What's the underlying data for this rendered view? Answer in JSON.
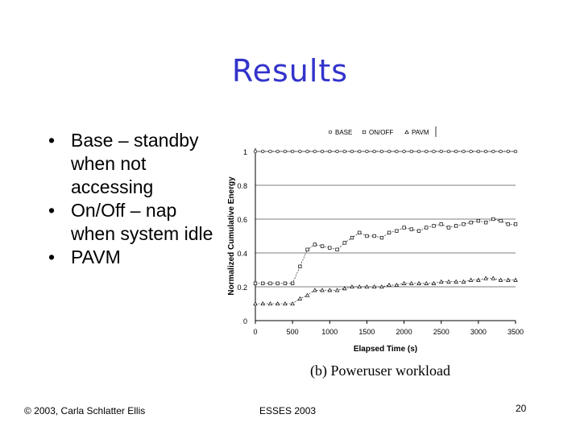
{
  "slide": {
    "title": "Results",
    "bullets": [
      {
        "marker": "•",
        "text": "Base – standby when not accessing"
      },
      {
        "marker": "•",
        "text": "On/Off – nap when system idle"
      },
      {
        "marker": "•",
        "text": "PAVM"
      }
    ],
    "footer_left": "© 2003, Carla Schlatter Ellis",
    "footer_mid": "ESSES 2003",
    "page_number": "20",
    "caption": "(b) Poweruser workload"
  },
  "chart_data": {
    "type": "line",
    "xlabel": "Elapsed Time (s)",
    "ylabel": "Normalized Cumulative Energy",
    "xlim": [
      0,
      3500
    ],
    "ylim": [
      0,
      1
    ],
    "xticks": [
      "0",
      "500",
      "1000",
      "1500",
      "2000",
      "2500",
      "3000",
      "3500"
    ],
    "yticks": [
      "0",
      "0.2",
      "0.4",
      "0.6",
      "0.8",
      "1"
    ],
    "grid": "horizontal",
    "legend_position": "top",
    "series": [
      {
        "name": "BASE",
        "marker": "circle",
        "x": [
          0,
          100,
          200,
          300,
          400,
          500,
          600,
          700,
          800,
          900,
          1000,
          1100,
          1200,
          1300,
          1400,
          1500,
          1600,
          1700,
          1800,
          1900,
          2000,
          2100,
          2200,
          2300,
          2400,
          2500,
          2600,
          2700,
          2800,
          2900,
          3000,
          3100,
          3200,
          3300,
          3400,
          3500
        ],
        "y": [
          1,
          1,
          1,
          1,
          1,
          1,
          1,
          1,
          1,
          1,
          1,
          1,
          1,
          1,
          1,
          1,
          1,
          1,
          1,
          1,
          1,
          1,
          1,
          1,
          1,
          1,
          1,
          1,
          1,
          1,
          1,
          1,
          1,
          1,
          1,
          1
        ]
      },
      {
        "name": "ON/OFF",
        "marker": "square",
        "x": [
          0,
          100,
          200,
          300,
          400,
          500,
          600,
          700,
          800,
          900,
          1000,
          1100,
          1200,
          1300,
          1400,
          1500,
          1600,
          1700,
          1800,
          1900,
          2000,
          2100,
          2200,
          2300,
          2400,
          2500,
          2600,
          2700,
          2800,
          2900,
          3000,
          3100,
          3200,
          3300,
          3400,
          3500
        ],
        "y": [
          0.22,
          0.22,
          0.22,
          0.22,
          0.22,
          0.22,
          0.32,
          0.42,
          0.45,
          0.44,
          0.43,
          0.42,
          0.46,
          0.49,
          0.52,
          0.5,
          0.5,
          0.49,
          0.52,
          0.53,
          0.55,
          0.54,
          0.53,
          0.55,
          0.56,
          0.57,
          0.55,
          0.56,
          0.57,
          0.58,
          0.59,
          0.58,
          0.6,
          0.59,
          0.57,
          0.57
        ]
      },
      {
        "name": "PAVM",
        "marker": "triangle",
        "x": [
          0,
          100,
          200,
          300,
          400,
          500,
          600,
          700,
          800,
          900,
          1000,
          1100,
          1200,
          1300,
          1400,
          1500,
          1600,
          1700,
          1800,
          1900,
          2000,
          2100,
          2200,
          2300,
          2400,
          2500,
          2600,
          2700,
          2800,
          2900,
          3000,
          3100,
          3200,
          3300,
          3400,
          3500
        ],
        "y": [
          0.1,
          0.1,
          0.1,
          0.1,
          0.1,
          0.1,
          0.13,
          0.15,
          0.18,
          0.18,
          0.18,
          0.18,
          0.19,
          0.2,
          0.2,
          0.2,
          0.2,
          0.2,
          0.21,
          0.21,
          0.22,
          0.22,
          0.22,
          0.22,
          0.22,
          0.23,
          0.23,
          0.23,
          0.23,
          0.24,
          0.24,
          0.25,
          0.25,
          0.24,
          0.24,
          0.24
        ]
      }
    ]
  },
  "colors": {
    "title": "#3333cc",
    "line": "#000000"
  }
}
